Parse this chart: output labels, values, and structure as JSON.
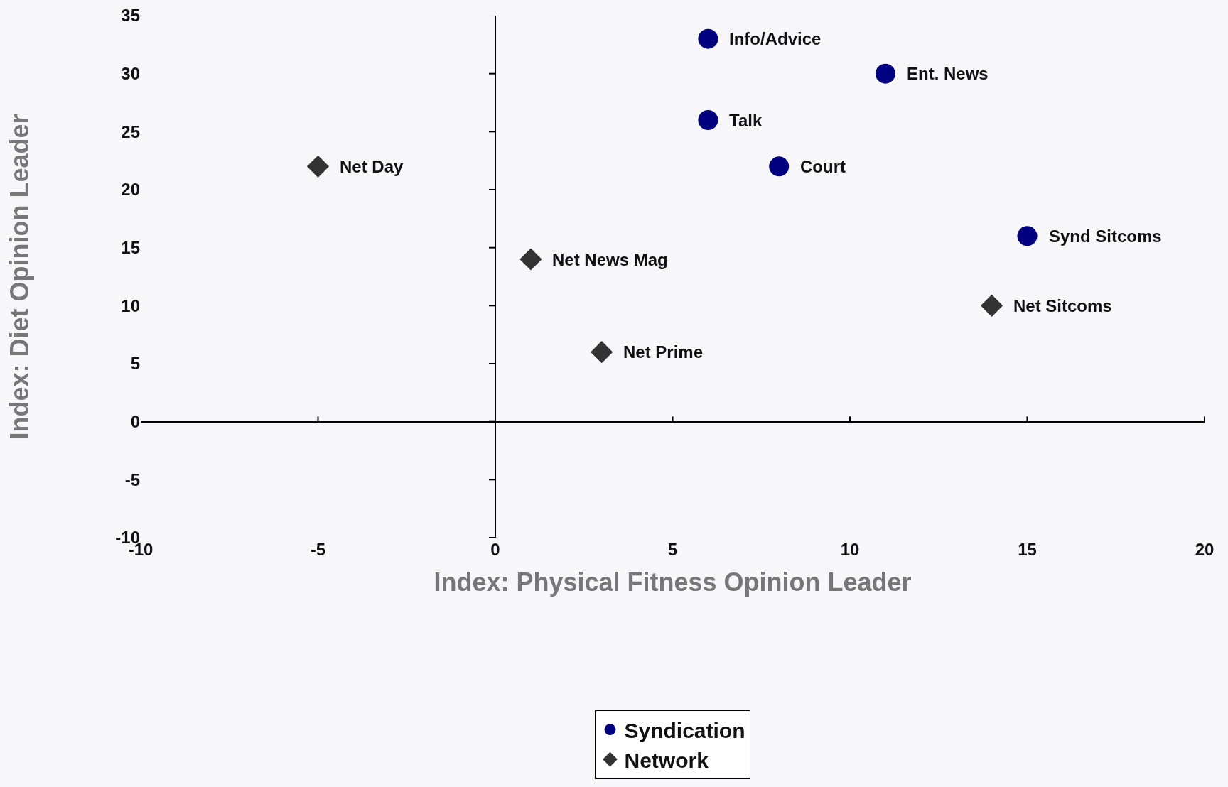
{
  "chart_data": {
    "type": "scatter",
    "xlabel": "Index: Physical Fitness Opinion Leader",
    "ylabel": "Index: Diet Opinion Leader",
    "xlim": [
      -10,
      20
    ],
    "xticks": [
      -10,
      -5,
      0,
      5,
      10,
      15,
      20
    ],
    "ylim": [
      -10,
      35
    ],
    "yticks": [
      -10,
      -5,
      0,
      5,
      10,
      15,
      20,
      25,
      30,
      35
    ],
    "legend": "bottom",
    "series": [
      {
        "name": "Syndication",
        "color": "#000080",
        "marker": "circle",
        "x": [
          6,
          11,
          6,
          8,
          15
        ],
        "values": [
          33,
          30,
          26,
          22,
          16
        ]
      },
      {
        "name": "Network",
        "color": "#333333",
        "marker": "diamond",
        "x": [
          -5,
          1,
          14,
          3
        ],
        "values": [
          22,
          14,
          10,
          6
        ]
      }
    ],
    "annotations": [
      {
        "text": "Info/Advice",
        "x": 6,
        "y": 33
      },
      {
        "text": "Ent. News",
        "x": 11,
        "y": 30
      },
      {
        "text": "Talk",
        "x": 6,
        "y": 26
      },
      {
        "text": "Court",
        "x": 8,
        "y": 22
      },
      {
        "text": "Synd Sitcoms",
        "x": 15,
        "y": 16
      },
      {
        "text": "Net Day",
        "x": -5,
        "y": 22
      },
      {
        "text": "Net News Mag",
        "x": 1,
        "y": 14
      },
      {
        "text": "Net Sitcoms",
        "x": 14,
        "y": 10
      },
      {
        "text": "Net Prime",
        "x": 3,
        "y": 6
      }
    ]
  }
}
